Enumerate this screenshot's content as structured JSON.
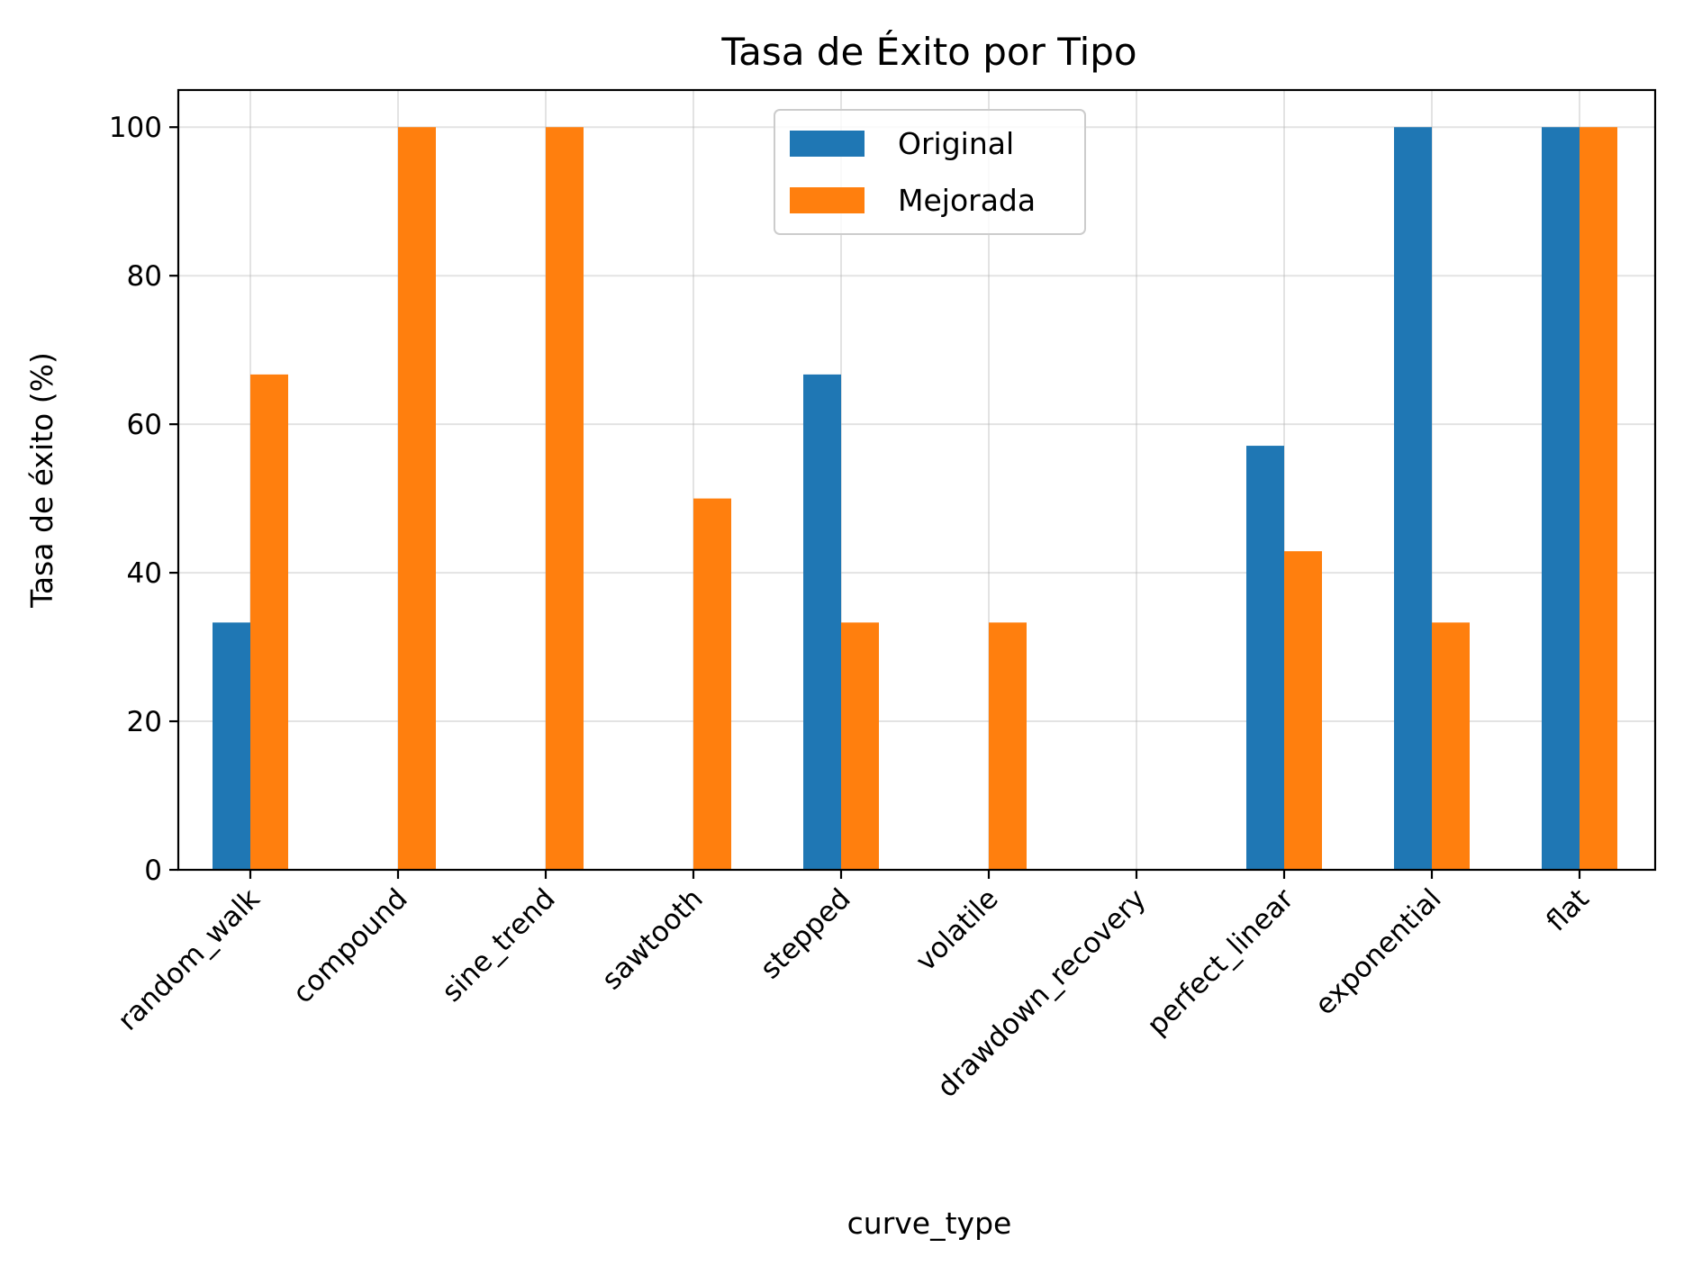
{
  "chart_data": {
    "type": "bar",
    "title": "Tasa de Éxito por Tipo",
    "xlabel": "curve_type",
    "ylabel": "Tasa de éxito (%)",
    "categories": [
      "random_walk",
      "compound",
      "sine_trend",
      "sawtooth",
      "stepped",
      "volatile",
      "drawdown_recovery",
      "perfect_linear",
      "exponential",
      "flat"
    ],
    "series": [
      {
        "name": "Original",
        "color": "#1f77b4",
        "values": [
          33.3,
          0,
          0,
          0,
          66.7,
          0,
          0,
          57.1,
          100,
          100
        ]
      },
      {
        "name": "Mejorada",
        "color": "#ff7f0e",
        "values": [
          66.7,
          100,
          100,
          50,
          33.3,
          33.3,
          0,
          42.9,
          33.3,
          100
        ]
      }
    ],
    "ylim": [
      0,
      105
    ],
    "yticks": [
      0,
      20,
      40,
      60,
      80,
      100
    ],
    "grid": true,
    "legend_position": "upper center"
  }
}
